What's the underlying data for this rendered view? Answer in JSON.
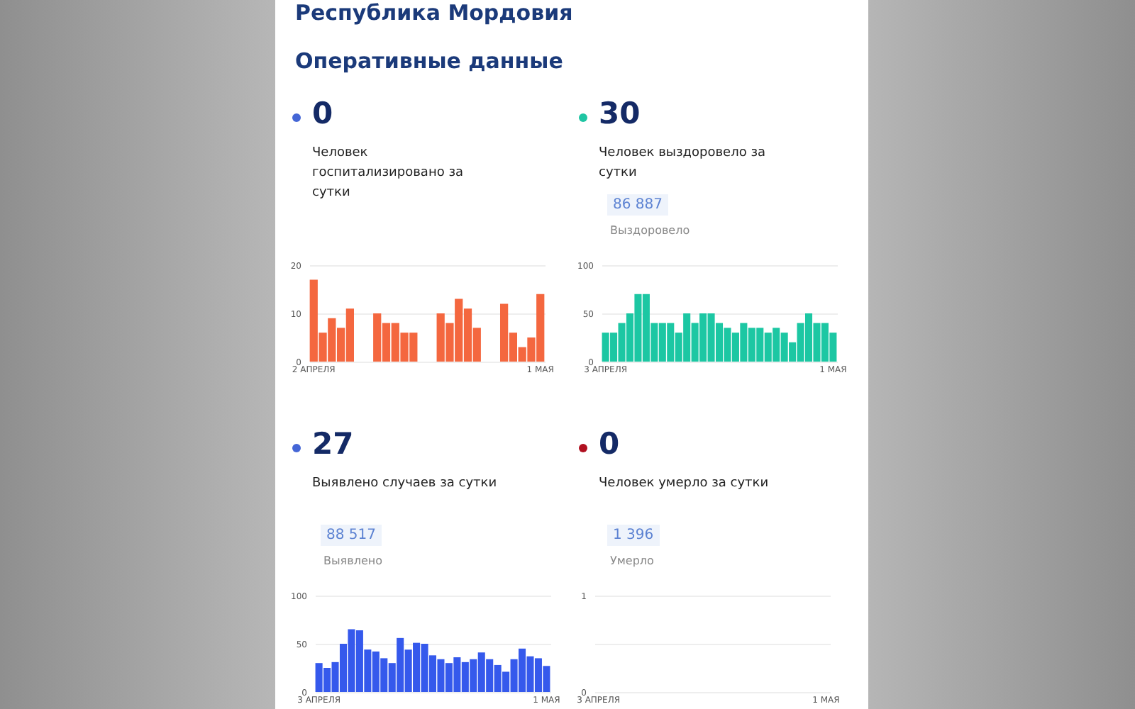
{
  "chart_data": [
    {
      "type": "other",
      "title": "Республика Мордовия",
      "subtitle": "Оперативные данные"
    },
    {
      "type": "bar",
      "title": "0",
      "subtitle": "Человек госпитализировано за сутки",
      "categories": [
        "2 АПРЕЛЯ",
        null,
        null,
        null,
        null,
        null,
        null,
        null,
        null,
        null,
        null,
        null,
        null,
        null,
        null,
        null,
        null,
        null,
        null,
        null,
        null,
        null,
        null,
        null,
        null,
        "1 МАЯ"
      ],
      "color": "#f4673f",
      "values": [
        17,
        6,
        9,
        7,
        11,
        null,
        null,
        10,
        8,
        8,
        6,
        6,
        null,
        null,
        10,
        8,
        13,
        11,
        7,
        null,
        null,
        12,
        6,
        3,
        5,
        14
      ],
      "ylim": [
        0,
        20
      ],
      "yticks": [
        0,
        10,
        20
      ],
      "grid": true
    },
    {
      "type": "bar",
      "title": "30",
      "subtitle": "Человек выздоровело за сутки",
      "annotations": [
        "86 887",
        "Выздоровело"
      ],
      "categories": [
        "3 АПРЕЛЯ",
        null,
        null,
        null,
        null,
        null,
        null,
        null,
        null,
        null,
        null,
        null,
        null,
        null,
        null,
        null,
        null,
        null,
        null,
        null,
        null,
        null,
        null,
        null,
        null,
        null,
        null,
        null,
        "1 МАЯ"
      ],
      "color": "#1cc7a3",
      "values": [
        30,
        30,
        40,
        50,
        70,
        70,
        40,
        40,
        40,
        30,
        50,
        40,
        50,
        50,
        40,
        35,
        30,
        40,
        35,
        35,
        30,
        35,
        30,
        20,
        40,
        50,
        40,
        40,
        30
      ],
      "ylim": [
        0,
        100
      ],
      "yticks": [
        0,
        50,
        100
      ],
      "grid": true
    },
    {
      "type": "bar",
      "title": "27",
      "subtitle": "Выявлено случаев за сутки",
      "annotations": [
        "88 517",
        "Выявлено"
      ],
      "categories": [
        "3 АПРЕЛЯ",
        null,
        null,
        null,
        null,
        null,
        null,
        null,
        null,
        null,
        null,
        null,
        null,
        null,
        null,
        null,
        null,
        null,
        null,
        null,
        null,
        null,
        null,
        null,
        null,
        null,
        null,
        null,
        "1 МАЯ"
      ],
      "color": "#3559ec",
      "values": [
        30,
        25,
        31,
        50,
        65,
        64,
        44,
        42,
        35,
        30,
        56,
        44,
        51,
        50,
        38,
        34,
        30,
        36,
        31,
        34,
        41,
        34,
        28,
        21,
        34,
        45,
        37,
        35,
        27
      ],
      "ylim": [
        0,
        100
      ],
      "yticks": [
        0,
        50,
        100
      ],
      "grid": true
    },
    {
      "type": "bar",
      "title": "0",
      "subtitle": "Человек умерло за сутки",
      "annotations": [
        "1 396",
        "Умерло"
      ],
      "categories": [
        "3 АПРЕЛЯ",
        null,
        null,
        null,
        null,
        null,
        null,
        null,
        null,
        null,
        null,
        null,
        null,
        null,
        null,
        null,
        null,
        null,
        null,
        null,
        null,
        null,
        null,
        null,
        null,
        null,
        null,
        null,
        "1 МАЯ"
      ],
      "color": "#c8102e",
      "values": [
        0,
        0,
        0,
        0,
        0,
        0,
        0,
        0,
        0,
        0,
        0,
        0,
        0,
        0,
        0,
        0,
        0,
        0,
        0,
        0,
        0,
        0,
        0,
        0,
        0,
        0,
        0,
        0,
        0
      ],
      "ylim": [
        0,
        1
      ],
      "yticks": [
        0,
        {
          "value": 0.5,
          "label": null
        },
        1
      ],
      "grid": true
    }
  ]
}
